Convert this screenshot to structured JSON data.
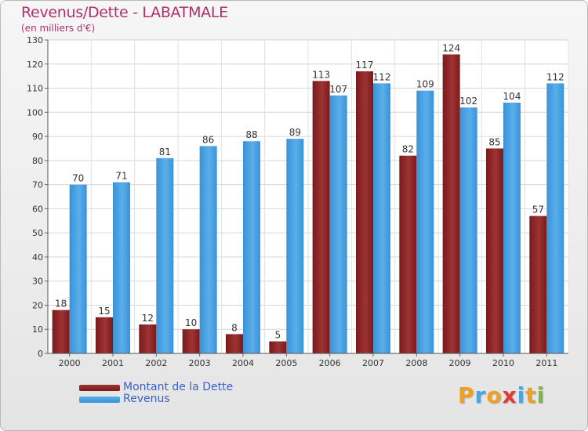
{
  "chart_data": {
    "type": "bar",
    "title": "Revenus/Dette - LABATMALE",
    "subtitle": "(en milliers d'€)",
    "categories": [
      "2000",
      "2001",
      "2002",
      "2003",
      "2004",
      "2005",
      "2006",
      "2007",
      "2008",
      "2009",
      "2010",
      "2011"
    ],
    "series": [
      {
        "name": "Montant de la Dette",
        "values": [
          18,
          15,
          12,
          10,
          8,
          5,
          113,
          117,
          82,
          124,
          85,
          57
        ],
        "color": "#7a1a1a",
        "color_light": "#9e3434"
      },
      {
        "name": "Revenus",
        "values": [
          70,
          71,
          81,
          86,
          88,
          89,
          107,
          112,
          109,
          102,
          104,
          112
        ],
        "color": "#3a93d8",
        "color_light": "#5aaeea"
      }
    ],
    "ylim": [
      0,
      130
    ],
    "yticks": [
      0,
      10,
      20,
      30,
      40,
      50,
      60,
      70,
      80,
      90,
      100,
      110,
      120,
      130
    ],
    "grid": true,
    "legend_position": "bottom-left"
  },
  "logo": {
    "letters": [
      "P",
      "r",
      "o",
      "x",
      "i",
      "t",
      "i"
    ],
    "colors": [
      "#f0a020",
      "#4aa8e0",
      "#f0a020",
      "#e03a3a",
      "#4aa8e0",
      "#f0a020",
      "#7ab840"
    ]
  }
}
